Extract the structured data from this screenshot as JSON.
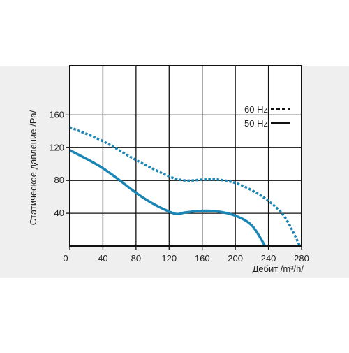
{
  "chart_data": {
    "type": "line",
    "x_label": "Дебит /m³/h/",
    "y_label": "Статическое давление /Pa/",
    "xlim": [
      0,
      280
    ],
    "ylim": [
      0,
      220
    ],
    "xticks": [
      0,
      40,
      80,
      120,
      160,
      200,
      240,
      280
    ],
    "yticks": [
      40,
      80,
      120,
      160
    ],
    "grid": true,
    "legend": "upper right",
    "series": [
      {
        "name": "60 Hz",
        "color": "#1a86b5",
        "style": "dotted",
        "x": [
          0,
          40,
          80,
          120,
          140,
          160,
          180,
          200,
          220,
          240,
          260,
          278
        ],
        "values": [
          145,
          128,
          105,
          85,
          80,
          81,
          81,
          77,
          68,
          55,
          35,
          0
        ]
      },
      {
        "name": "50 Hz",
        "color": "#1a86b5",
        "style": "solid",
        "x": [
          0,
          40,
          80,
          100,
          120,
          130,
          140,
          160,
          180,
          200,
          220,
          236
        ],
        "values": [
          117,
          95,
          65,
          52,
          42,
          39,
          41,
          43,
          42,
          37,
          25,
          0
        ]
      }
    ]
  }
}
